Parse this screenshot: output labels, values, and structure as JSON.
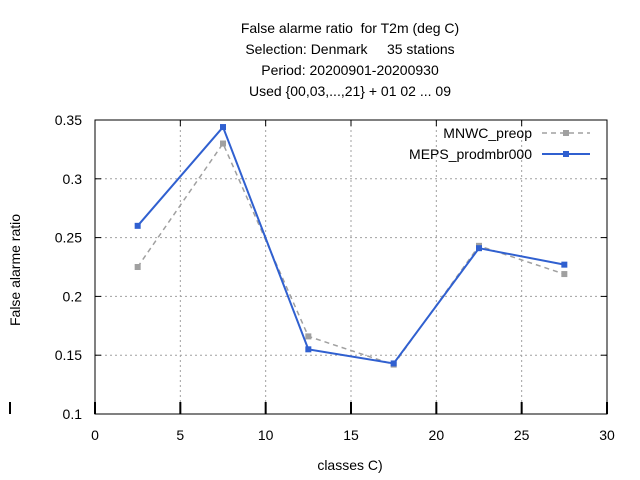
{
  "chart_data": {
    "type": "line",
    "title_lines": [
      "False alarme ratio  for T2m (deg C)",
      "Selection: Denmark     35 stations",
      "Period: 20200901-20200930",
      "Used {00,03,...,21} + 01 02 ... 09"
    ],
    "xlabel": "classes C)",
    "ylabel": "False alarme ratio",
    "xlim": [
      0,
      30
    ],
    "ylim": [
      0.1,
      0.35
    ],
    "x_ticks": [
      0,
      5,
      10,
      15,
      20,
      25,
      30
    ],
    "y_ticks": [
      0.1,
      0.15,
      0.2,
      0.25,
      0.3,
      0.35
    ],
    "x_tick_labels": [
      "0",
      "5",
      "10",
      "15",
      "20",
      "25",
      "30"
    ],
    "y_tick_labels": [
      "0.1",
      "0.15",
      "0.2",
      "0.25",
      "0.3",
      "0.35"
    ],
    "grid": true,
    "legend_position": "top-right",
    "x": [
      2.5,
      7.5,
      12.5,
      17.5,
      22.5,
      27.5
    ],
    "series": [
      {
        "name": "MNWC_preop",
        "values": [
          0.225,
          0.33,
          0.166,
          0.142,
          0.243,
          0.219
        ],
        "color": "#a0a0a0",
        "dashed": true
      },
      {
        "name": "MEPS_prodmbr000",
        "values": [
          0.26,
          0.344,
          0.155,
          0.143,
          0.241,
          0.227
        ],
        "color": "#3060d0",
        "dashed": false
      }
    ]
  }
}
